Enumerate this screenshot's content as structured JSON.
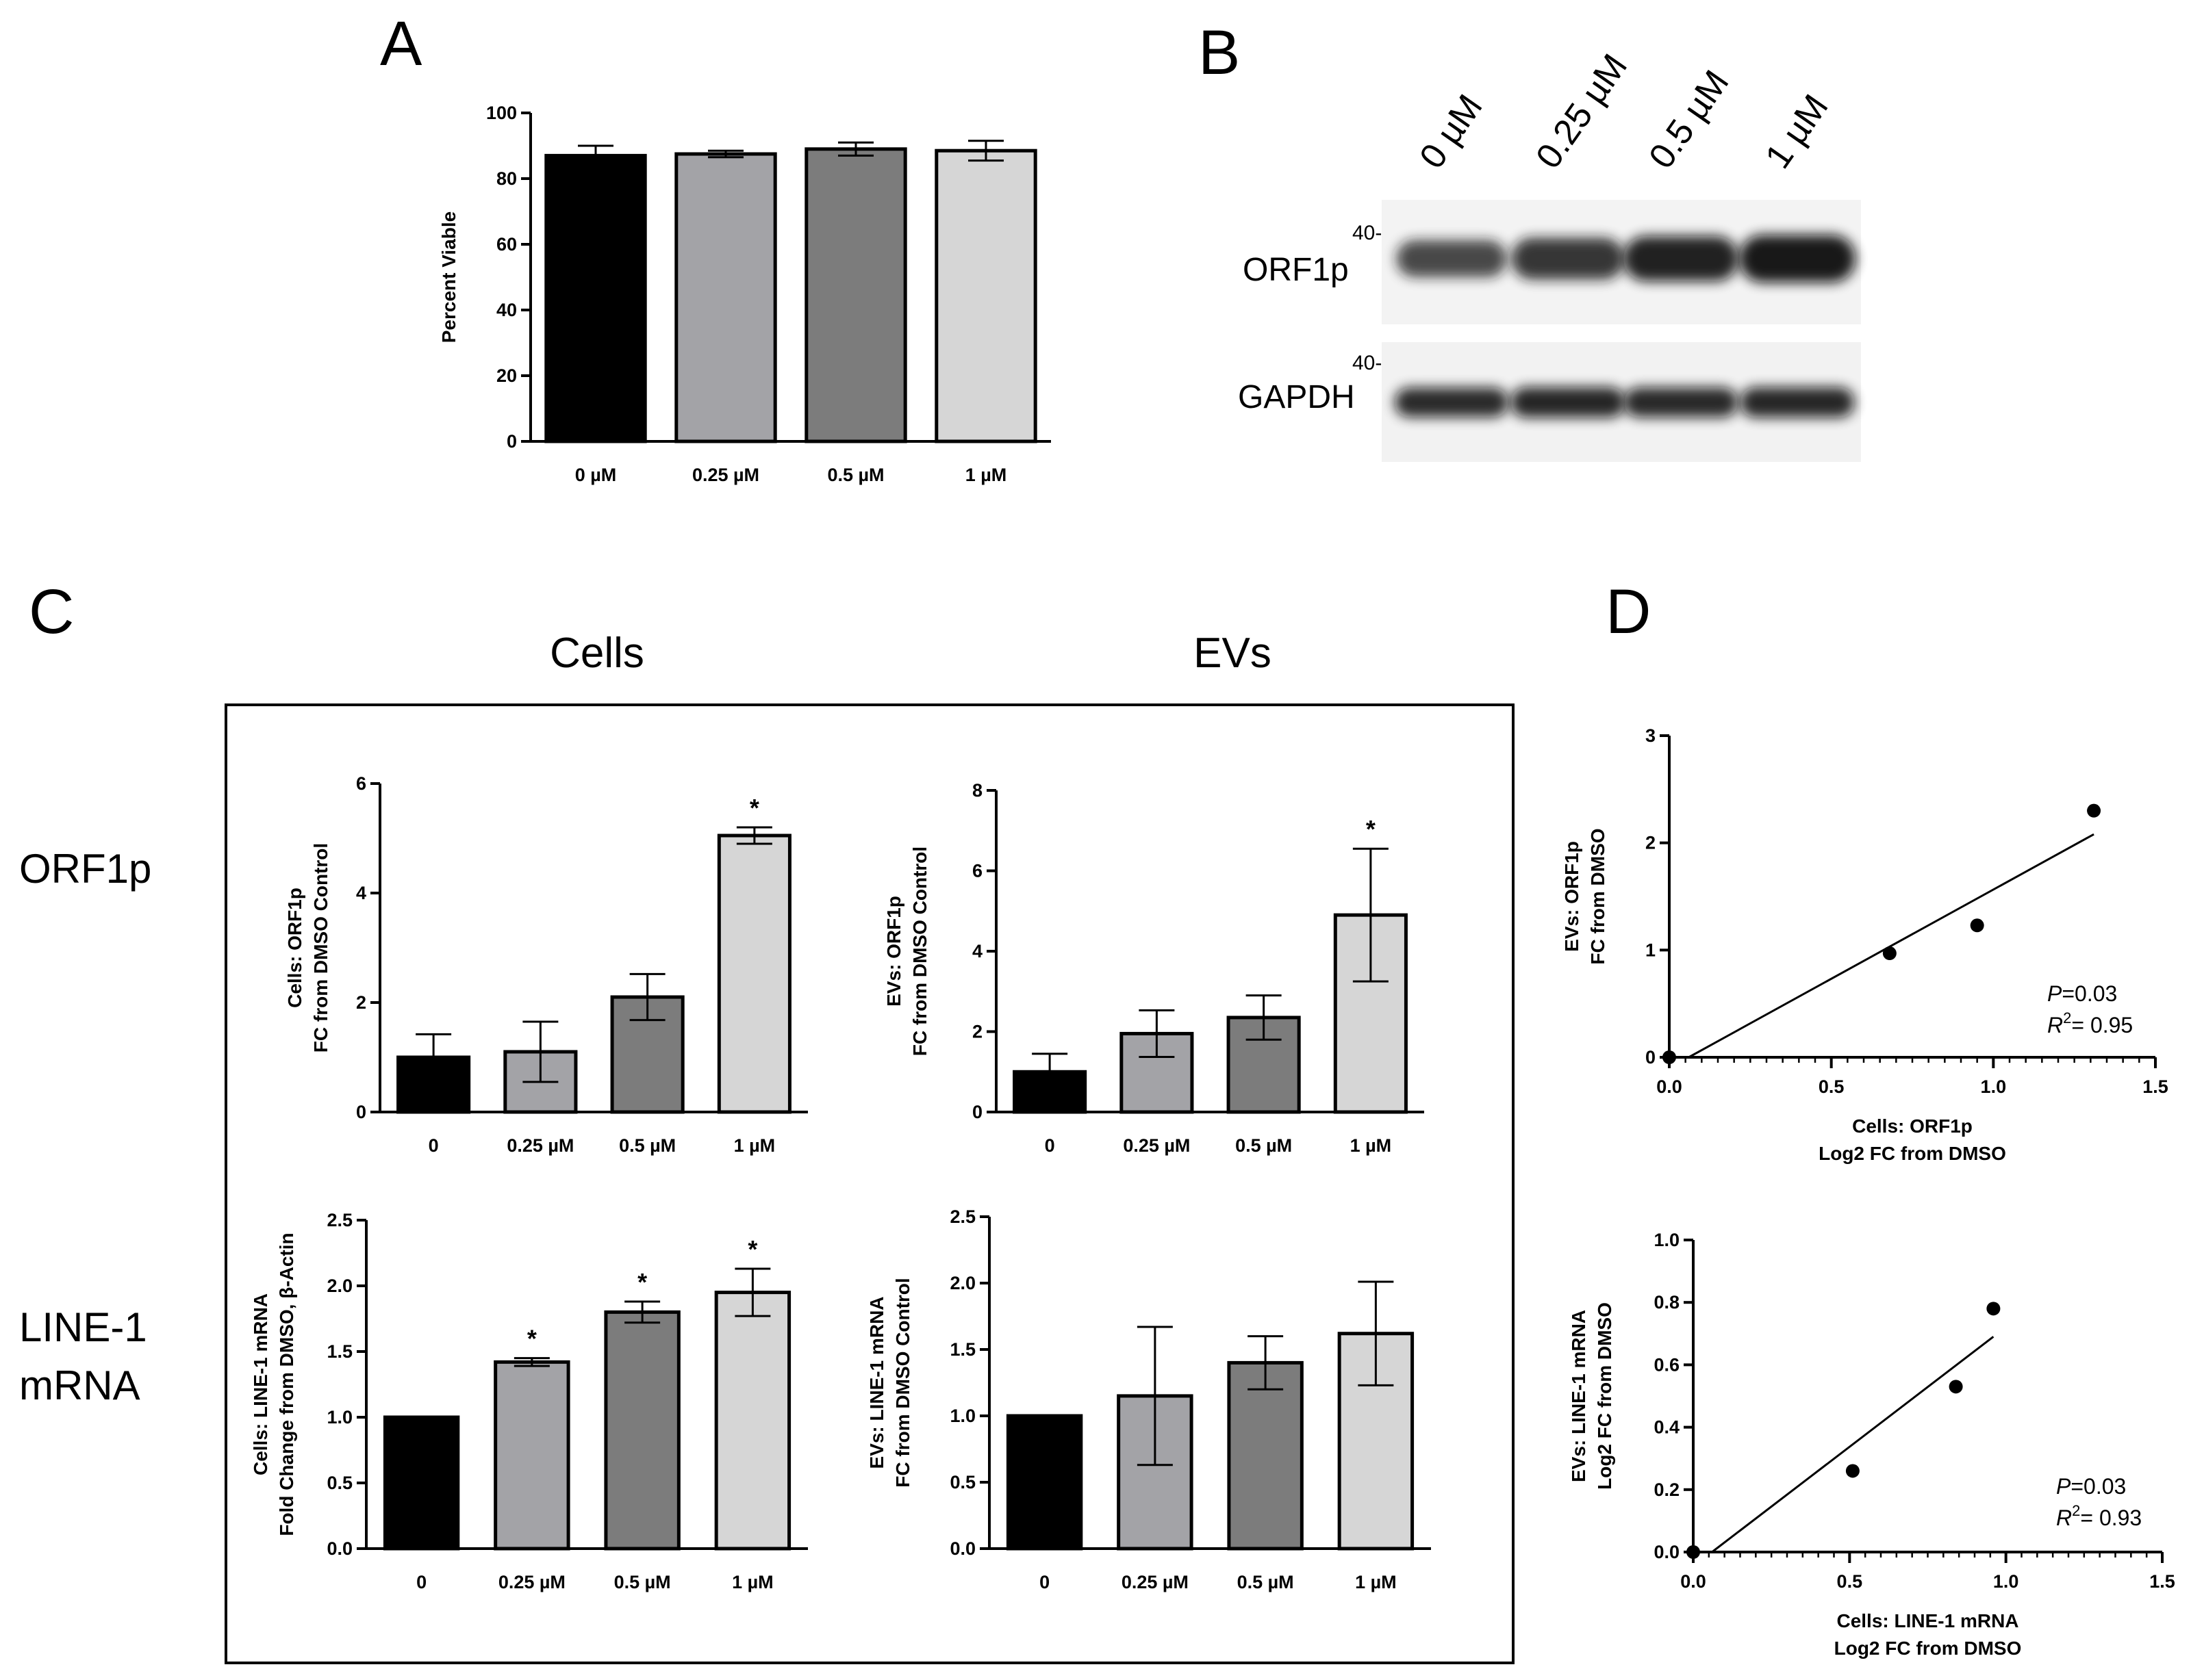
{
  "figure": {
    "panel_letters": [
      "A",
      "B",
      "C",
      "D"
    ],
    "section_titles": {
      "cells": "Cells",
      "evs": "EVs"
    },
    "row_titles": {
      "orf1p": "ORF1p",
      "line1_line1": "LINE-1",
      "line1_line2": "mRNA"
    },
    "colors": {
      "dose_0": "#000000",
      "dose_025": "#a3a3a7",
      "dose_05": "#7c7c7c",
      "dose_1": "#d6d6d6",
      "axis": "#000000"
    }
  },
  "blot": {
    "lanes": [
      "0 µM",
      "0.25 µM",
      "0.5 µM",
      "1 µM"
    ],
    "rows": [
      {
        "label": "ORF1p",
        "mw": "40-",
        "band_intensity": [
          0.55,
          0.75,
          0.9,
          1.0
        ]
      },
      {
        "label": "GAPDH",
        "mw": "40-",
        "band_intensity": [
          0.8,
          0.85,
          0.82,
          0.84
        ]
      }
    ]
  },
  "chart_data": [
    {
      "id": "A",
      "type": "bar",
      "categories": [
        "0 µM",
        "0.25 µM",
        "0.5 µM",
        "1 µM"
      ],
      "values": [
        87,
        87.5,
        89,
        88.5
      ],
      "errors": [
        3,
        1,
        2,
        3
      ],
      "ylabel": "Percent Viable",
      "ylim": [
        0,
        100
      ],
      "yticks": [
        0,
        20,
        40,
        60,
        80,
        100
      ],
      "ytick_labels": [
        "0",
        "20",
        "40",
        "60",
        "80",
        "100"
      ],
      "stars": [
        "",
        "",
        "",
        ""
      ]
    },
    {
      "id": "C1",
      "type": "bar",
      "categories": [
        "0",
        "0.25 µM",
        "0.5 µM",
        "1 µM"
      ],
      "values": [
        1.0,
        1.1,
        2.1,
        5.05
      ],
      "errors": [
        0.42,
        0.55,
        0.42,
        0.15
      ],
      "ylabel": [
        "Cells: ORF1p",
        "FC from DMSO Control"
      ],
      "ylim": [
        0,
        6
      ],
      "yticks": [
        0,
        2,
        4,
        6
      ],
      "ytick_labels": [
        "0",
        "2",
        "4",
        "6"
      ],
      "stars": [
        "",
        "",
        "",
        "*"
      ]
    },
    {
      "id": "C2",
      "type": "bar",
      "categories": [
        "0",
        "0.25 µM",
        "0.5 µM",
        "1 µM"
      ],
      "values": [
        1.0,
        1.95,
        2.35,
        4.9
      ],
      "errors": [
        0.45,
        0.58,
        0.55,
        1.65
      ],
      "ylabel": [
        "EVs: ORF1p",
        "FC from DMSO Control"
      ],
      "ylim": [
        0,
        8
      ],
      "yticks": [
        0,
        2,
        4,
        6,
        8
      ],
      "ytick_labels": [
        "0",
        "2",
        "4",
        "6",
        "8"
      ],
      "stars": [
        "",
        "",
        "",
        "*"
      ]
    },
    {
      "id": "C3",
      "type": "bar",
      "categories": [
        "0",
        "0.25 µM",
        "0.5 µM",
        "1 µM"
      ],
      "values": [
        1.0,
        1.42,
        1.8,
        1.95
      ],
      "errors": [
        0.0,
        0.03,
        0.08,
        0.18
      ],
      "ylabel": [
        "Cells: LINE-1 mRNA",
        "Fold Change from DMSO, β-Actin"
      ],
      "ylim": [
        0,
        2.5
      ],
      "yticks": [
        0,
        0.5,
        1.0,
        1.5,
        2.0,
        2.5
      ],
      "ytick_labels": [
        "0.0",
        "0.5",
        "1.0",
        "1.5",
        "2.0",
        "2.5"
      ],
      "stars": [
        "",
        "*",
        "*",
        "*"
      ]
    },
    {
      "id": "C4",
      "type": "bar",
      "categories": [
        "0",
        "0.25 µM",
        "0.5 µM",
        "1 µM"
      ],
      "values": [
        1.0,
        1.15,
        1.4,
        1.62
      ],
      "errors": [
        0.0,
        0.52,
        0.2,
        0.39
      ],
      "ylabel": [
        "EVs: LINE-1 mRNA",
        "FC from DMSO Control"
      ],
      "ylim": [
        0,
        2.5
      ],
      "yticks": [
        0,
        0.5,
        1.0,
        1.5,
        2.0,
        2.5
      ],
      "ytick_labels": [
        "0.0",
        "0.5",
        "1.0",
        "1.5",
        "2.0",
        "2.5"
      ],
      "stars": [
        "",
        "",
        "",
        ""
      ]
    },
    {
      "id": "D1",
      "type": "scatter",
      "x": [
        0,
        0.68,
        0.95,
        1.31
      ],
      "y": [
        0,
        0.97,
        1.23,
        2.3
      ],
      "fit": {
        "x": [
          0.06,
          1.31
        ],
        "y": [
          0,
          2.08
        ]
      },
      "xlabel": [
        "Cells: ORF1p",
        "Log2 FC from DMSO"
      ],
      "ylabel": [
        "EVs: ORF1p",
        "FC from DMSO"
      ],
      "xlim": [
        0,
        1.5
      ],
      "ylim": [
        0,
        3
      ],
      "xticks": [
        0,
        0.5,
        1.0,
        1.5
      ],
      "xtick_labels": [
        "0.0",
        "0.5",
        "1.0",
        "1.5"
      ],
      "yticks": [
        0,
        1,
        2,
        3
      ],
      "ytick_labels": [
        "0",
        "1",
        "2",
        "3"
      ],
      "stat_p": "=0.03",
      "stat_r2": "= 0.95"
    },
    {
      "id": "D2",
      "type": "scatter",
      "x": [
        0,
        0.51,
        0.84,
        0.96
      ],
      "y": [
        0,
        0.26,
        0.53,
        0.78
      ],
      "fit": {
        "x": [
          0.06,
          0.96
        ],
        "y": [
          0,
          0.69
        ]
      },
      "xlabel": [
        "Cells: LINE-1 mRNA",
        "Log2 FC from DMSO"
      ],
      "ylabel": [
        "EVs: LINE-1 mRNA",
        "Log2 FC from DMSO"
      ],
      "xlim": [
        0,
        1.5
      ],
      "ylim": [
        0,
        1.0
      ],
      "xticks": [
        0,
        0.5,
        1.0,
        1.5
      ],
      "xtick_labels": [
        "0.0",
        "0.5",
        "1.0",
        "1.5"
      ],
      "yticks": [
        0,
        0.2,
        0.4,
        0.6,
        0.8,
        1.0
      ],
      "ytick_labels": [
        "0.0",
        "0.2",
        "0.4",
        "0.6",
        "0.8",
        "1.0"
      ],
      "stat_p": "=0.03",
      "stat_r2": "= 0.93"
    }
  ]
}
